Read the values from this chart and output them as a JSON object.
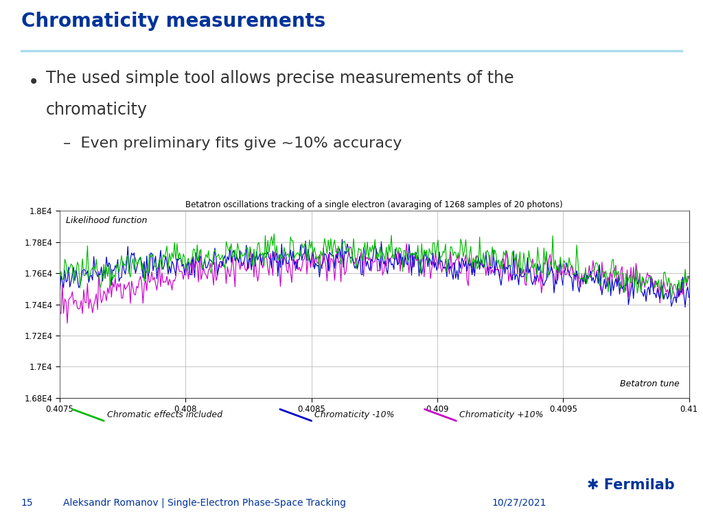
{
  "title": "Chromaticity measurements",
  "title_color": "#003399",
  "bullet_text": "The used simple tool allows precise measurements of the",
  "bullet_text2": "chromaticity",
  "sub_bullet": "Even preliminary fits give ~10% accuracy",
  "chart_title": "Betatron oscillations tracking of a single electron (avaraging of 1268 samples of 20 photons)",
  "xlabel": "Betatron tune",
  "ylabel": "Likelihood function",
  "xlim": [
    0.4075,
    0.41
  ],
  "ylim": [
    16800,
    18000
  ],
  "xticks": [
    0.4075,
    0.408,
    0.4085,
    0.409,
    0.4095,
    0.41
  ],
  "yticks": [
    16800,
    17000,
    17200,
    17400,
    17600,
    17800,
    18000
  ],
  "ytick_labels": [
    "1.68E4",
    "1.7E4",
    "1.72E4",
    "1.74E4",
    "1.76E4",
    "1.78E4",
    "1.8E4"
  ],
  "xtick_labels": [
    "0.4075",
    "0.408",
    "0.4085",
    "0.409",
    "0.4095",
    "0.41"
  ],
  "legend_labels": [
    "Chromatic effects included",
    "Chromaticity -10%",
    "Chromaticity +10%"
  ],
  "line_colors": [
    "#00bb00",
    "#0000cc",
    "#cc00cc"
  ],
  "footer_left_num": "15",
  "footer_left_text": "Aleksandr Romanov | Single-Electron Phase-Space Tracking",
  "footer_right": "10/27/2021",
  "header_color": "#003399",
  "accent_color": "#aaddee",
  "background_color": "#ffffff",
  "seed": 12345,
  "num_points": 500
}
